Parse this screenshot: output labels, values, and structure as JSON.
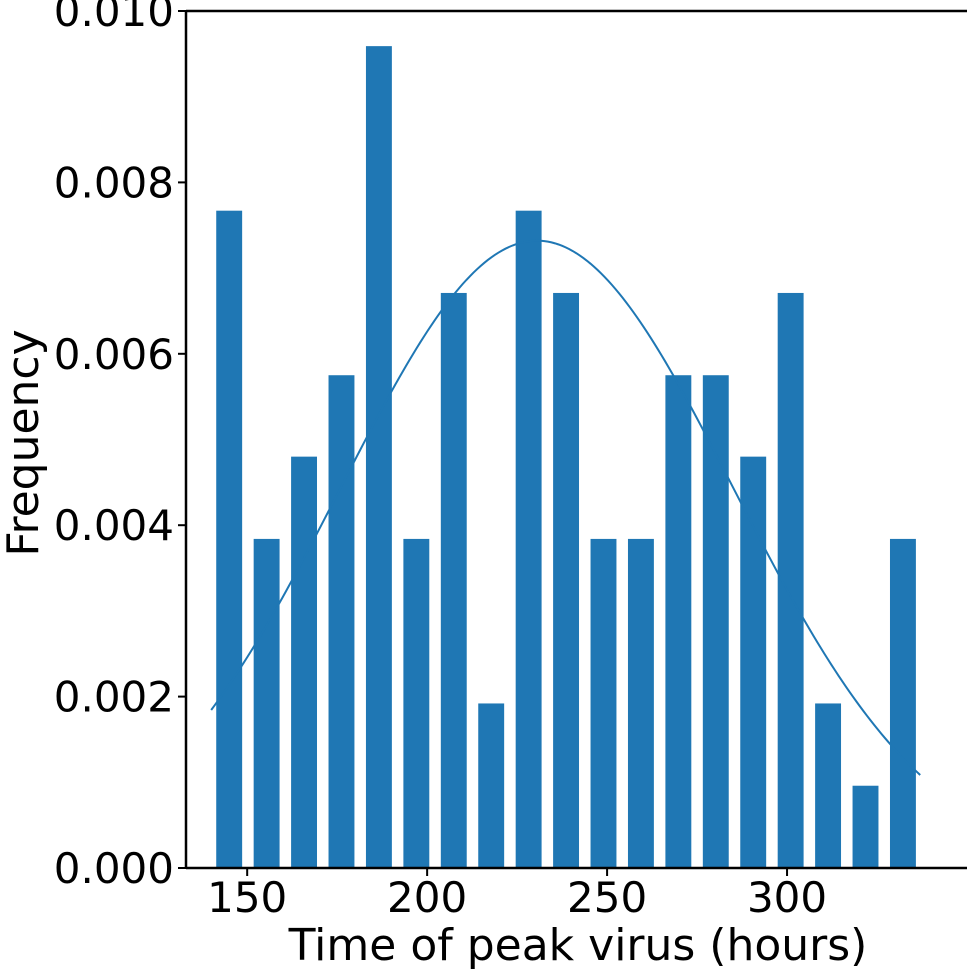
{
  "chart_data": {
    "type": "bar",
    "xlabel": "Time of peak virus (hours)",
    "ylabel": "Frequency",
    "xlim": [
      133,
      350
    ],
    "ylim": [
      0,
      0.01
    ],
    "grid": false,
    "x_ticks": [
      150,
      200,
      250,
      300
    ],
    "x_tick_labels": [
      "150",
      "200",
      "250",
      "300"
    ],
    "y_ticks": [
      0.0,
      0.002,
      0.004,
      0.006,
      0.008,
      0.01
    ],
    "y_tick_labels": [
      "0.000",
      "0.002",
      "0.004",
      "0.006",
      "0.008",
      "0.010"
    ],
    "bar_width": 7.2,
    "bar_color": "#1f77b4",
    "bars": [
      {
        "x": 145.0,
        "value": 0.00767
      },
      {
        "x": 155.4,
        "value": 0.00384
      },
      {
        "x": 165.8,
        "value": 0.0048
      },
      {
        "x": 176.2,
        "value": 0.00575
      },
      {
        "x": 186.6,
        "value": 0.00959
      },
      {
        "x": 197.0,
        "value": 0.00384
      },
      {
        "x": 207.4,
        "value": 0.00671
      },
      {
        "x": 217.8,
        "value": 0.00192
      },
      {
        "x": 228.2,
        "value": 0.00767
      },
      {
        "x": 238.6,
        "value": 0.00671
      },
      {
        "x": 249.0,
        "value": 0.00384
      },
      {
        "x": 259.4,
        "value": 0.00384
      },
      {
        "x": 269.8,
        "value": 0.00575
      },
      {
        "x": 280.2,
        "value": 0.00575
      },
      {
        "x": 290.6,
        "value": 0.0048
      },
      {
        "x": 301.0,
        "value": 0.00671
      },
      {
        "x": 311.4,
        "value": 0.00192
      },
      {
        "x": 321.8,
        "value": 0.00096
      },
      {
        "x": 332.2,
        "value": 0.00384
      }
    ],
    "fit_curve": {
      "kind": "normal",
      "mean": 230.5,
      "sd": 54.5,
      "x_range": [
        140,
        337
      ],
      "color": "#1f77b4"
    }
  }
}
